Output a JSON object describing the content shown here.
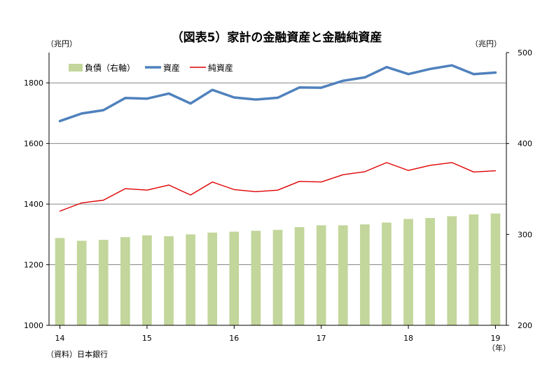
{
  "chart_data": {
    "type": "bar+line",
    "title": "（図表5）家計の金融資産と金融純資産",
    "left_axis_unit": "（兆円）",
    "right_axis_unit": "（兆円）",
    "x_axis_unit": "（年）",
    "source": "（資料）日本銀行",
    "left_axis": {
      "ylim": [
        1000,
        1900
      ],
      "ticks": [
        1000,
        1200,
        1400,
        1600,
        1800
      ]
    },
    "right_axis": {
      "ylim": [
        200,
        500
      ],
      "ticks": [
        200,
        300,
        400,
        500
      ]
    },
    "x_tick_labels": [
      "14",
      "15",
      "16",
      "17",
      "18",
      "19"
    ],
    "x_tick_periods": [
      0,
      4,
      8,
      12,
      16,
      20
    ],
    "periods": [
      "2014Q1",
      "2014Q2",
      "2014Q3",
      "2014Q4",
      "2015Q1",
      "2015Q2",
      "2015Q3",
      "2015Q4",
      "2016Q1",
      "2016Q2",
      "2016Q3",
      "2016Q4",
      "2017Q1",
      "2017Q2",
      "2017Q3",
      "2017Q4",
      "2018Q1",
      "2018Q2",
      "2018Q3",
      "2018Q4",
      "2019Q1"
    ],
    "gridlines": true,
    "legend_position": "top-left",
    "series": [
      {
        "name": "負債（右軸）",
        "kind": "bar",
        "axis": "right",
        "color": "#c3d69b",
        "values": [
          296,
          293,
          294,
          297,
          299,
          298,
          300,
          302,
          303,
          304,
          305,
          308,
          310,
          310,
          311,
          313,
          317,
          318,
          320,
          322,
          323
        ]
      },
      {
        "name": "資産",
        "kind": "line",
        "axis": "left",
        "color": "#4f81bd",
        "values": [
          1674,
          1699,
          1710,
          1750,
          1748,
          1765,
          1732,
          1777,
          1752,
          1745,
          1751,
          1785,
          1784,
          1807,
          1818,
          1852,
          1829,
          1846,
          1858,
          1829,
          1834
        ]
      },
      {
        "name": "純資産",
        "kind": "line",
        "axis": "left",
        "color": "#e00000",
        "values": [
          1377,
          1404,
          1413,
          1451,
          1446,
          1463,
          1430,
          1473,
          1448,
          1441,
          1446,
          1475,
          1473,
          1497,
          1507,
          1537,
          1511,
          1528,
          1537,
          1506,
          1510
        ]
      }
    ]
  }
}
